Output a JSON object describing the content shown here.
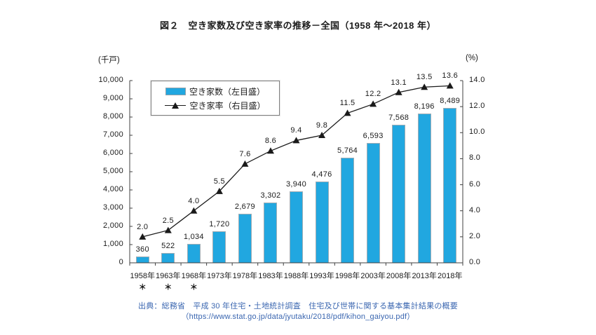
{
  "figure": {
    "title": "図２　空き家数及び空き家率の推移－全国（1958 年～2018 年）",
    "source_line1": "出典：総務省　平成 30 年住宅・土地統計調査　住宅及び世帯に関する基本集計結果の概要",
    "source_line2": "（https://www.stat.go.jp/data/jyutaku/2018/pdf/kihon_gaiyou.pdf）",
    "footnote_marker": "＊"
  },
  "legend": {
    "bars_label": "空き家数（左目盛）",
    "line_label": "空き家率（右目盛）"
  },
  "chart_data": {
    "type": "bar+line",
    "title": "空き家数及び空き家率の推移－全国（1958年～2018年）",
    "categories": [
      "1958年",
      "1963年",
      "1968年",
      "1973年",
      "1978年",
      "1983年",
      "1988年",
      "1993年",
      "1998年",
      "2003年",
      "2008年",
      "2013年",
      "2018年"
    ],
    "asterisk_category_indexes": [
      0,
      1,
      2
    ],
    "series": [
      {
        "name": "空き家数（左目盛）",
        "type": "bar",
        "axis": "left",
        "values": [
          360,
          522,
          1034,
          1720,
          2679,
          3302,
          3940,
          4476,
          5764,
          6593,
          7568,
          8196,
          8489
        ],
        "labels": [
          "360",
          "522",
          "1,034",
          "1,720",
          "2,679",
          "3,302",
          "3,940",
          "4,476",
          "5,764",
          "6,593",
          "7,568",
          "8,196",
          "8,489"
        ]
      },
      {
        "name": "空き家率（右目盛）",
        "type": "line",
        "axis": "right",
        "values": [
          2.0,
          2.5,
          4.0,
          5.5,
          7.6,
          8.6,
          9.4,
          9.8,
          11.5,
          12.2,
          13.1,
          13.5,
          13.6
        ],
        "labels": [
          "2.0",
          "2.5",
          "4.0",
          "5.5",
          "7.6",
          "8.6",
          "9.4",
          "9.8",
          "11.5",
          "12.2",
          "13.1",
          "13.5",
          "13.6"
        ]
      }
    ],
    "left_axis": {
      "unit": "(千戸)",
      "min": 0,
      "max": 10000,
      "tick_step": 1000,
      "tick_labels_top_to_bottom": [
        "10,000",
        "9,000",
        "8,000",
        "7,000",
        "6,000",
        "5,000",
        "4,000",
        "3,000",
        "2,000",
        "1,000",
        "0"
      ]
    },
    "right_axis": {
      "unit": "(%)",
      "min": 0,
      "max": 14,
      "tick_step": 2,
      "tick_labels_top_to_bottom": [
        "14.0",
        "12.0",
        "10.0",
        "8.0",
        "6.0",
        "4.0",
        "2.0",
        "0.0"
      ]
    },
    "grid": false,
    "legend_position": "top-left-inside"
  },
  "colors": {
    "bar_fill": "#21a7e0",
    "bar_border": "#9fadb5",
    "line": "#1a1a1a",
    "axis": "#404040",
    "text": "#1a1a1a",
    "source_text": "#3a66b0"
  }
}
